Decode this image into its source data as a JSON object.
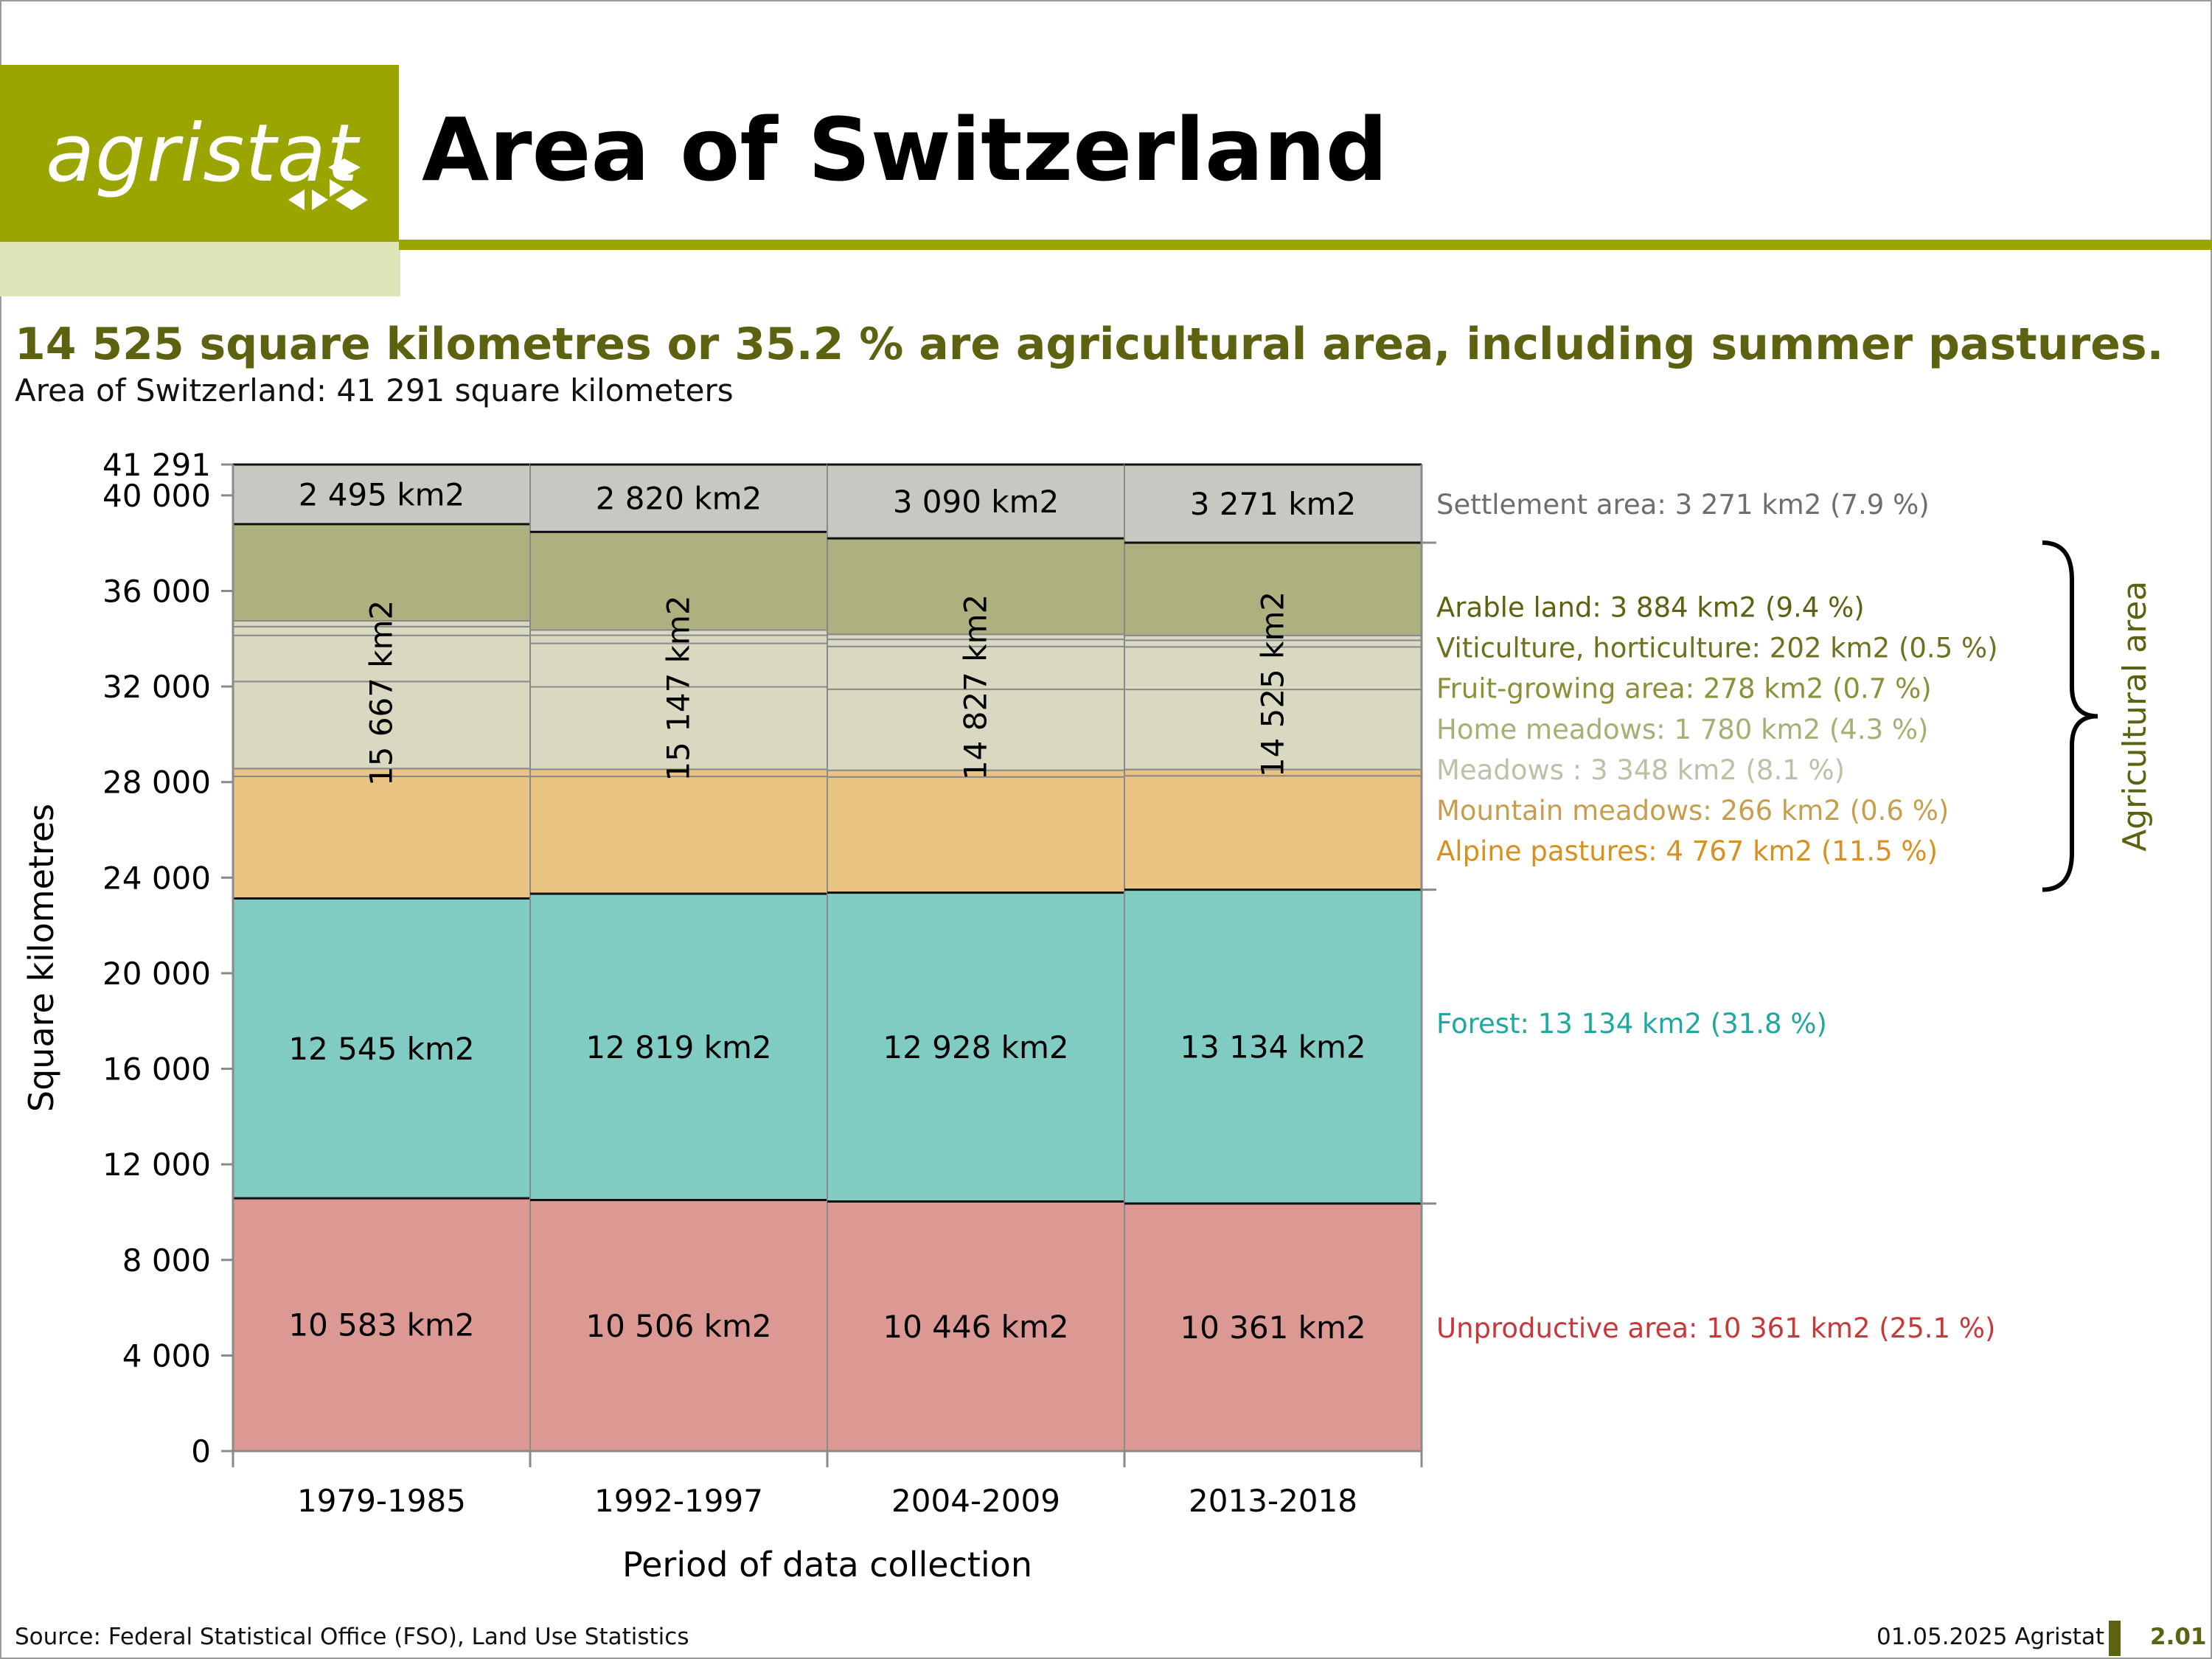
{
  "header": {
    "logo_text": "agristat",
    "title": "Area of Switzerland"
  },
  "headline": "14 525 square kilometres or 35.2 % are agricultural area, including summer pastures.",
  "subtitle": "Area of Switzerland: 41 291 square kilometers",
  "footer": {
    "source": "Source: Federal Statistical Office (FSO), Land Use Statistics",
    "date": "01.05.2025 Agristat",
    "page": "2.01"
  },
  "colors": {
    "brand": "#9ba500",
    "brand_dark": "#5d6210",
    "brand_light": "#dfe3b8"
  },
  "chart_data": {
    "type": "bar",
    "stacked": true,
    "xlabel": "Period of data collection",
    "ylabel": "Square kilometres",
    "ylim": [
      0,
      41291
    ],
    "yticks": [
      0,
      4000,
      8000,
      12000,
      16000,
      20000,
      24000,
      28000,
      32000,
      36000,
      40000,
      41291
    ],
    "ytick_labels": [
      "0",
      "4 000",
      "8 000",
      "12 000",
      "16 000",
      "20 000",
      "24 000",
      "28 000",
      "32 000",
      "36 000",
      "40 000",
      "41 291"
    ],
    "categories": [
      "1979-1985",
      "1992-1997",
      "2004-2009",
      "2013-2018"
    ],
    "series": [
      {
        "name": "Unproductive area",
        "color": "#dc9993",
        "legend_color": "#c8383a",
        "values": [
          10583,
          10506,
          10446,
          10361
        ],
        "labels": [
          "10 583 km2",
          "10 506 km2",
          "10 446 km2",
          "10 361 km2"
        ]
      },
      {
        "name": "Forest",
        "color": "#80ccc3",
        "legend_color": "#1ea8a0",
        "values": [
          12545,
          12819,
          12928,
          13134
        ],
        "labels": [
          "12 545 km2",
          "12 819 km2",
          "12 928 km2",
          "13 134 km2"
        ]
      },
      {
        "name": "Alpine pastures",
        "color": "#e8c382",
        "legend_color": "#d8901e",
        "values": [
          5110,
          4910,
          4840,
          4767
        ]
      },
      {
        "name": "Mountain meadows",
        "color": "#e8c382",
        "legend_color": "#c89e4e",
        "values": [
          330,
          300,
          280,
          266
        ]
      },
      {
        "name": "Meadows",
        "color": "#d9d9c2",
        "legend_color": "#bfbfa6",
        "values": [
          3640,
          3450,
          3390,
          3348
        ]
      },
      {
        "name": "Home meadows",
        "color": "#d9d9c2",
        "legend_color": "#a9ae74",
        "values": [
          1930,
          1820,
          1790,
          1780
        ]
      },
      {
        "name": "Fruit-growing area",
        "color": "#d9d9c2",
        "legend_color": "#8c9038",
        "values": [
          370,
          340,
          300,
          278
        ]
      },
      {
        "name": "Viticulture, horticulture",
        "color": "#d9d9c2",
        "legend_color": "#6e7220",
        "values": [
          240,
          220,
          210,
          202
        ]
      },
      {
        "name": "Arable land",
        "color": "#adb07f",
        "legend_color": "#5d6210",
        "values": [
          4047,
          4107,
          4017,
          3884
        ]
      },
      {
        "name": "Settlement area",
        "color": "#c8c8c3",
        "legend_color": "#6e6e6e",
        "values": [
          2495,
          2820,
          3090,
          3271
        ],
        "labels": [
          "2 495 km2",
          "2 820 km2",
          "3 090 km2",
          "3 271 km2"
        ]
      }
    ],
    "agricultural_totals": [
      "15 667 km2",
      "15 147 km2",
      "14 827 km2",
      "14 525 km2"
    ],
    "legend": [
      {
        "text": "Settlement area: 3 271 km2 (7.9 %)",
        "color": "#6e6e6e",
        "value": 39655
      },
      {
        "text": "Arable land: 3 884 km2 (9.4 %)",
        "color": "#5d6210",
        "value": 35350
      },
      {
        "text": "Viticulture, horticulture: 202 km2 (0.5 %)",
        "color": "#6e7220",
        "value": 33650
      },
      {
        "text": "Fruit-growing area: 278 km2 (0.7 %)",
        "color": "#8c9038",
        "value": 31950
      },
      {
        "text": "Home meadows: 1 780 km2 (4.3 %)",
        "color": "#a9ae74",
        "value": 30250
      },
      {
        "text": "Meadows : 3 348 km2 (8.1 %)",
        "color": "#bfbfa6",
        "value": 28550
      },
      {
        "text": "Mountain meadows: 266 km2 (0.6 %)",
        "color": "#c89e4e",
        "value": 26850
      },
      {
        "text": "Alpine pastures: 4 767 km2 (11.5 %)",
        "color": "#d8901e",
        "value": 25150
      },
      {
        "text": "Forest: 13 134 km2 (31.8 %)",
        "color": "#1ea8a0",
        "value": 17930
      },
      {
        "text": "Unproductive area: 10 361 km2 (25.1 %)",
        "color": "#c8383a",
        "value": 5180
      }
    ],
    "brace_label": "Agricultural area",
    "brace_color": "#5d6210"
  }
}
